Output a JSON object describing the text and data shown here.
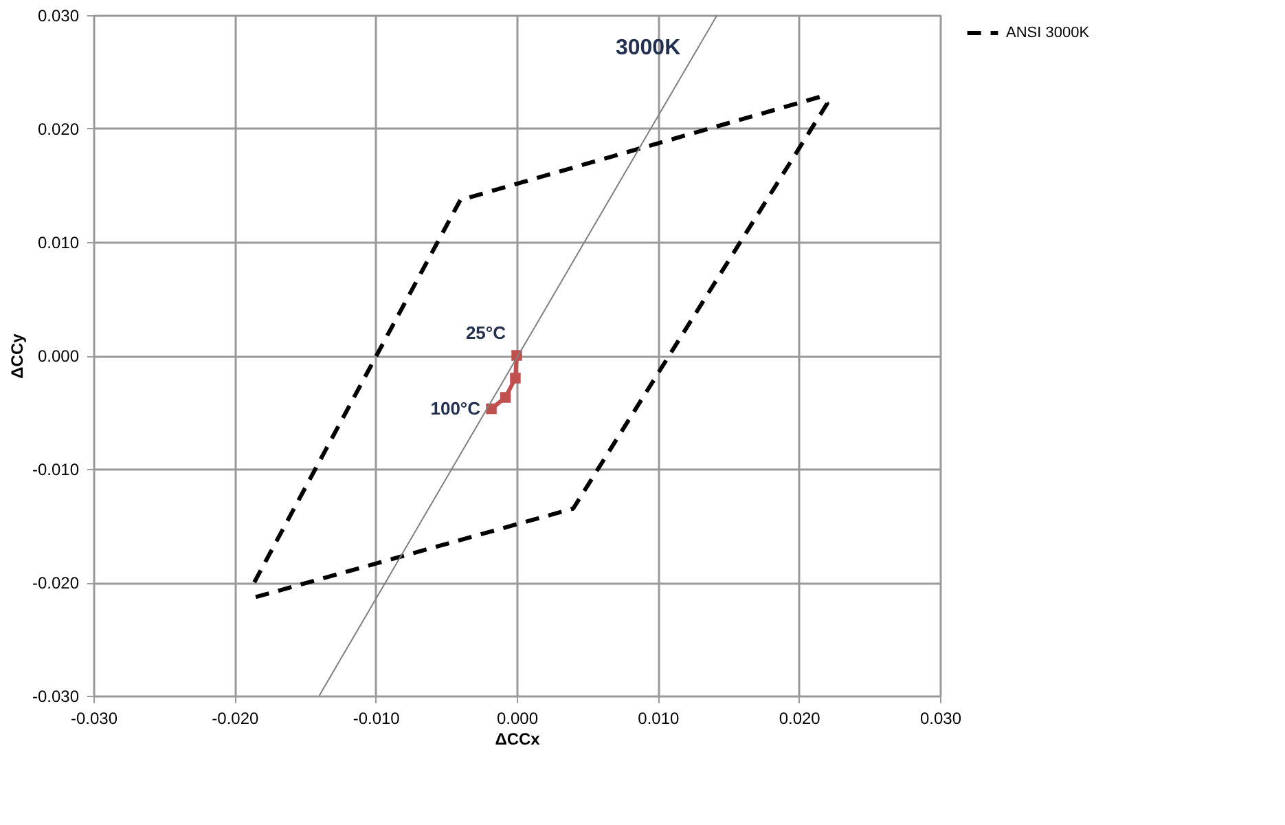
{
  "chart_data": {
    "type": "line",
    "xlabel": "ΔCCx",
    "ylabel": "ΔCCy",
    "xlim": [
      -0.03,
      0.03
    ],
    "xticks": [
      {
        "value": -0.03,
        "label": "-0.030"
      },
      {
        "value": -0.02,
        "label": "-0.020"
      },
      {
        "value": -0.01,
        "label": "-0.010"
      },
      {
        "value": 0,
        "label": "0.000"
      },
      {
        "value": 0.01,
        "label": "0.010"
      },
      {
        "value": 0.02,
        "label": "0.020"
      },
      {
        "value": 0.03,
        "label": "0.030"
      }
    ],
    "ylim": [
      -0.03,
      0.03
    ],
    "yticks": [
      {
        "value": -0.03,
        "label": "-0.030"
      },
      {
        "value": -0.02,
        "label": "-0.020"
      },
      {
        "value": -0.01,
        "label": "-0.010"
      },
      {
        "value": 0,
        "label": "0.000"
      },
      {
        "value": 0.01,
        "label": "0.010"
      },
      {
        "value": 0.02,
        "label": "0.020"
      },
      {
        "value": 0.03,
        "label": "0.030"
      }
    ],
    "grid": true,
    "legend": "right",
    "series": [
      {
        "color": "#c0504d",
        "marker": "square",
        "line_style": "solid",
        "x": [
          0.0,
          -0.0001,
          -0.0008,
          -0.0018
        ],
        "values": [
          0.0,
          -0.002,
          -0.0037,
          -0.0047
        ]
      },
      {
        "name": "ANSI 3000K",
        "color": "#000000",
        "marker": "none",
        "line_style": "dashed",
        "x": [
          -0.0185,
          0.004,
          0.022,
          0.0215,
          -0.004,
          -0.0186
        ],
        "values": [
          -0.0213,
          -0.0135,
          0.0222,
          0.0228,
          0.0137,
          -0.02
        ]
      },
      {
        "color": "#808080",
        "marker": "none",
        "line_style": "solid",
        "x": [
          -0.014,
          0.0142
        ],
        "values": [
          -0.03,
          0.03
        ]
      }
    ],
    "annotations": [
      {
        "text": "3000K",
        "x": 0.0118,
        "y": 0.025
      },
      {
        "text": "25°C",
        "x": 0.0,
        "y": 0.0
      },
      {
        "text": "100°C",
        "x": -0.0018,
        "y": -0.0047
      }
    ]
  }
}
